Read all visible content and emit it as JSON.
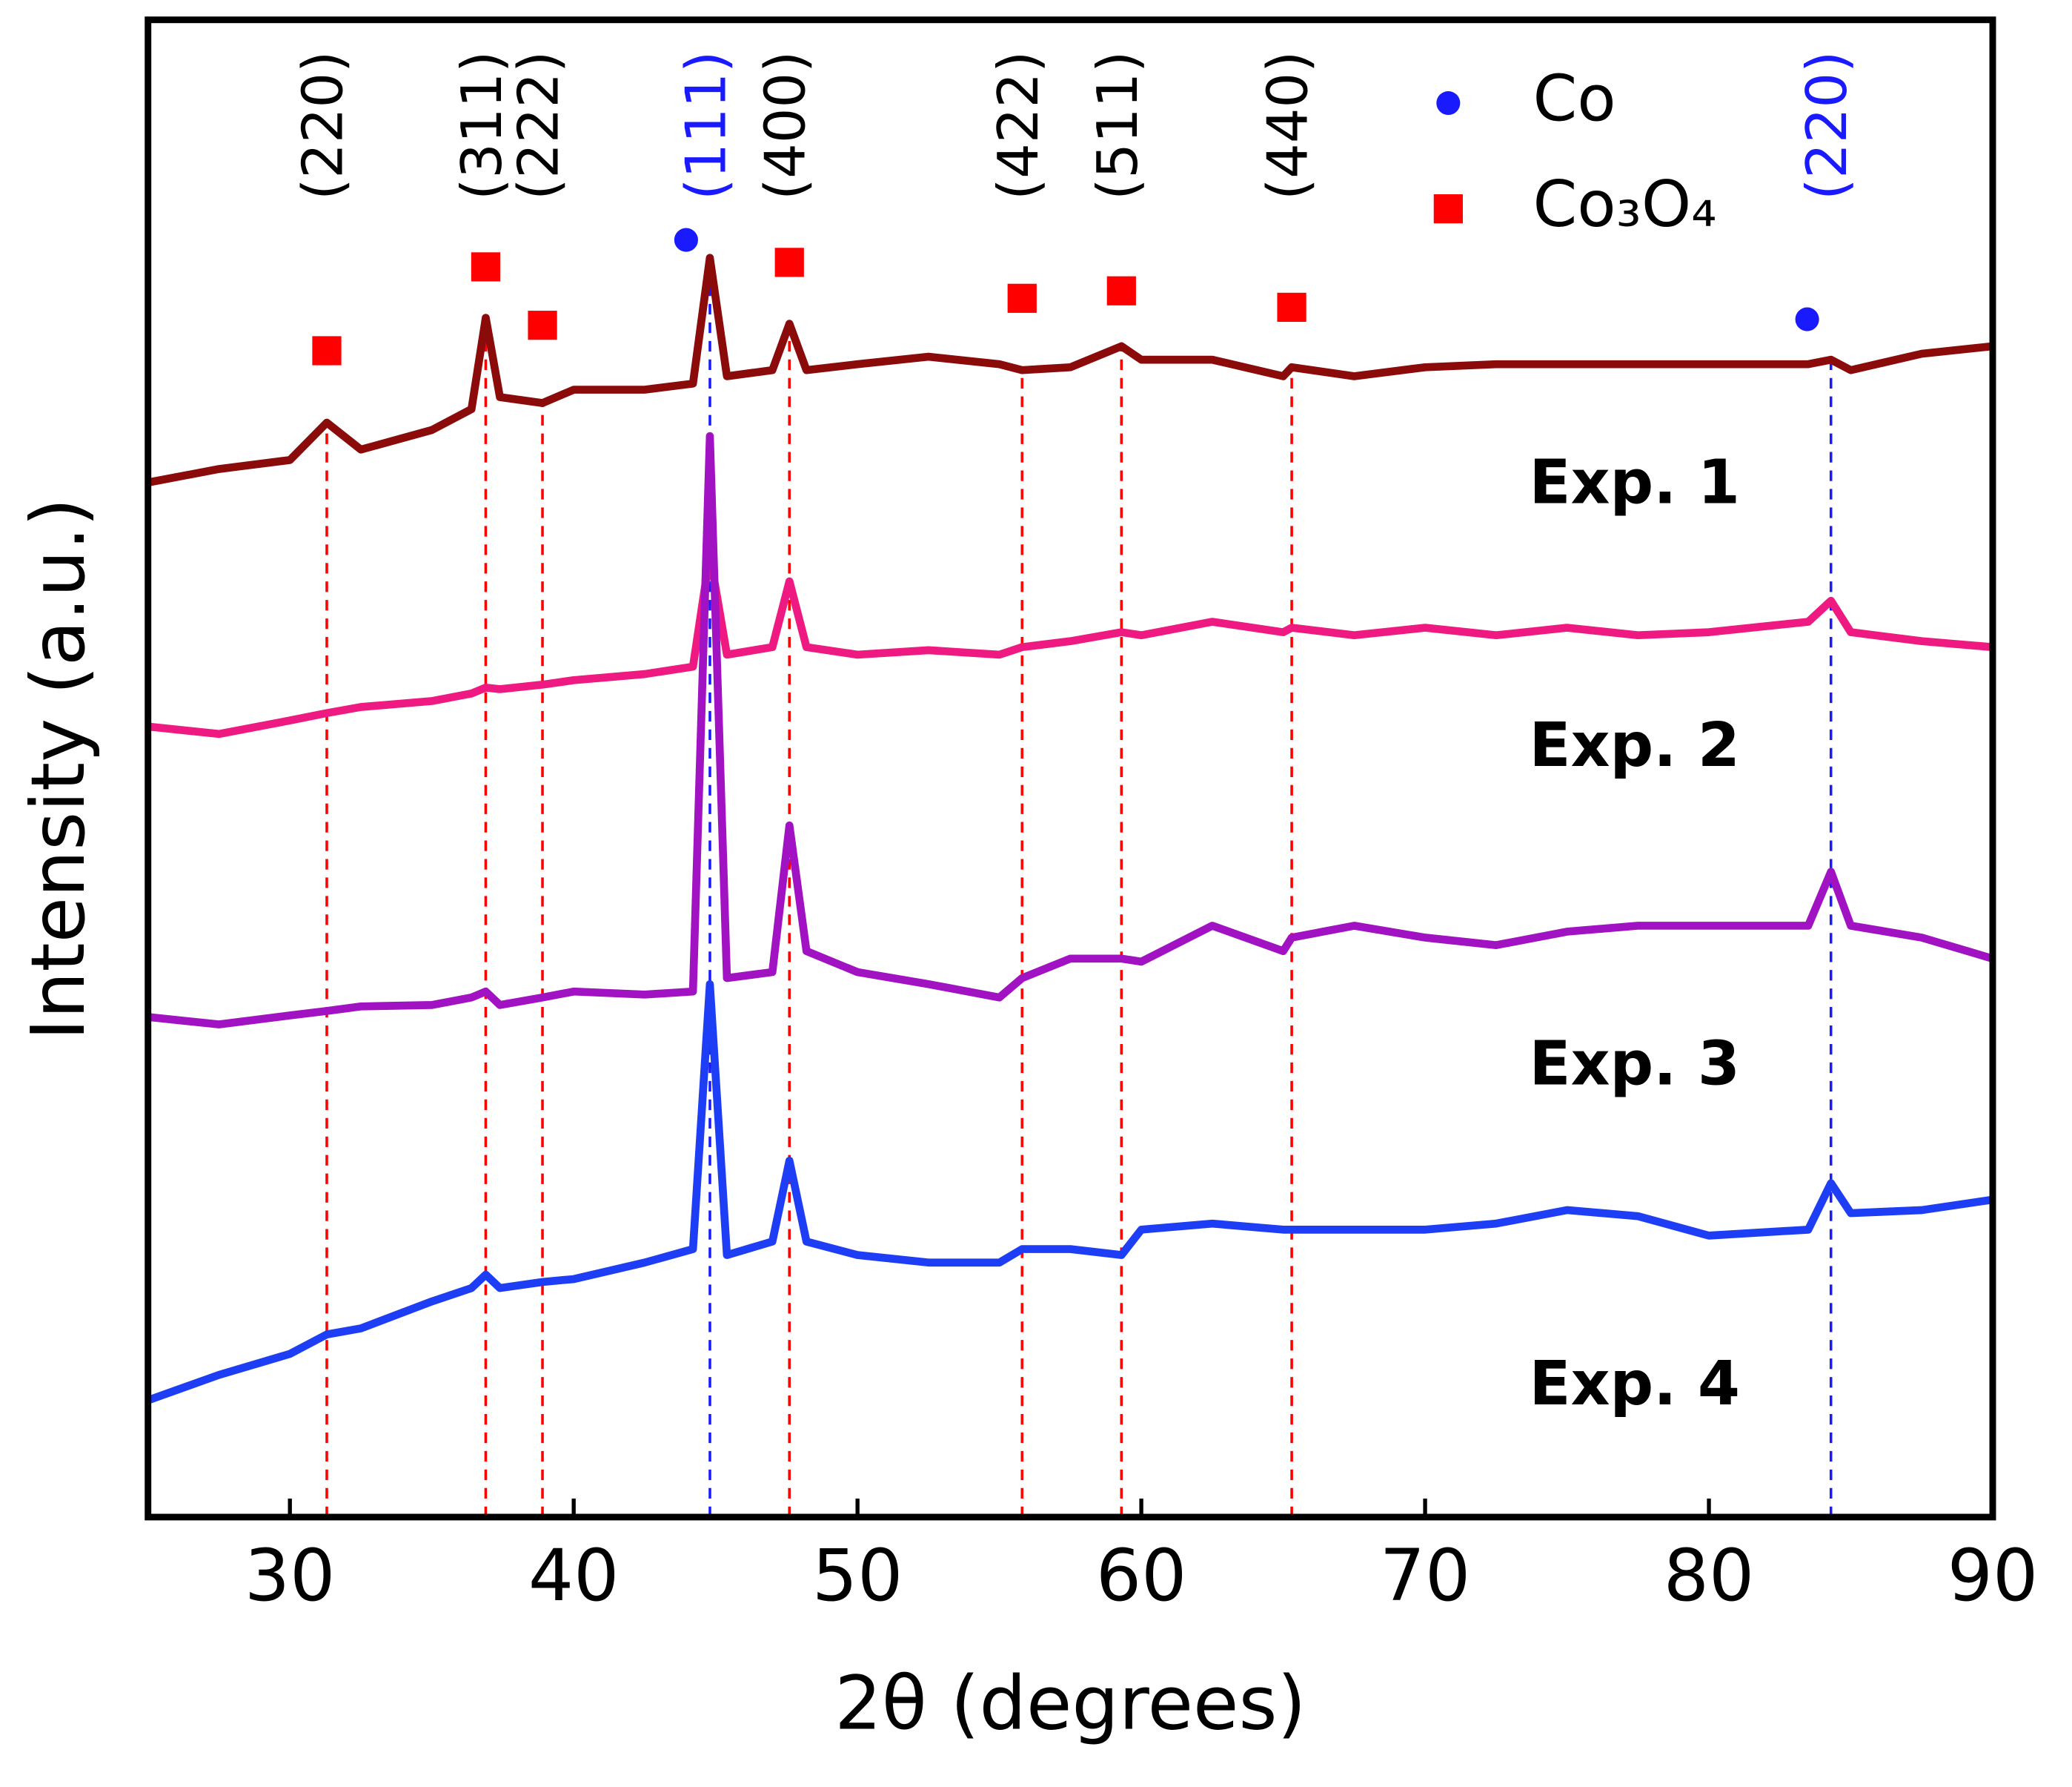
{
  "chart_data": {
    "type": "line",
    "xlabel": "2θ (degrees)",
    "ylabel": "Intensity (a.u.)",
    "xlim": [
      25,
      90
    ],
    "xticks": [
      30,
      40,
      50,
      60,
      70,
      80,
      90
    ],
    "ylim": [
      0,
      100
    ],
    "x": [
      25,
      27.5,
      30,
      31.3,
      32.5,
      35,
      36.4,
      36.9,
      37.4,
      38.9,
      40,
      42.5,
      44.2,
      44.8,
      45.4,
      47.0,
      47.6,
      48.2,
      50,
      52.5,
      55,
      55.8,
      57.5,
      59.3,
      60,
      62.5,
      65,
      65.3,
      67.5,
      70,
      72.5,
      75,
      77.5,
      80,
      83.5,
      84.3,
      85,
      87.5,
      90
    ],
    "series": [
      {
        "name": "Exp. 1",
        "color": "#8b0a0a",
        "values": [
          69.1,
          70,
          70.6,
          73.1,
          71.3,
          72.6,
          74,
          80.1,
          74.8,
          74.4,
          75.3,
          75.3,
          75.7,
          84.1,
          76.2,
          76.6,
          79.7,
          76.6,
          77,
          77.5,
          77,
          76.6,
          76.8,
          78.2,
          77.3,
          77.3,
          76.2,
          76.8,
          76.2,
          76.8,
          77,
          77,
          77,
          77,
          77,
          77.3,
          76.6,
          77.7,
          78.2
        ]
      },
      {
        "name": "Exp. 2",
        "color": "#ee1a82",
        "values": [
          52.8,
          52.3,
          53.2,
          53.7,
          54.1,
          54.5,
          55,
          55.4,
          55.3,
          55.6,
          55.9,
          56.3,
          56.8,
          64.3,
          57.6,
          58.1,
          62.5,
          58.1,
          57.6,
          57.9,
          57.6,
          58.1,
          58.5,
          59.1,
          58.9,
          59.8,
          59.1,
          59.4,
          58.9,
          59.4,
          58.9,
          59.4,
          58.9,
          59.1,
          59.8,
          61.2,
          59.1,
          58.5,
          58.1
        ]
      },
      {
        "name": "Exp. 3",
        "color": "#a112c2",
        "values": [
          33.4,
          32.9,
          33.5,
          33.8,
          34.1,
          34.2,
          34.7,
          35.1,
          34.2,
          34.7,
          35.1,
          34.9,
          35.1,
          72.2,
          36,
          36.4,
          46.2,
          37.8,
          36.4,
          35.6,
          34.7,
          36,
          37.3,
          37.3,
          37.1,
          39.5,
          37.8,
          38.7,
          39.5,
          38.7,
          38.2,
          39.1,
          39.5,
          39.5,
          39.5,
          43.1,
          39.5,
          38.7,
          37.3
        ]
      },
      {
        "name": "Exp. 4",
        "color": "#1e3ef5",
        "values": [
          7.8,
          9.5,
          10.9,
          12.2,
          12.6,
          14.4,
          15.3,
          16.2,
          15.3,
          15.7,
          15.9,
          17,
          17.9,
          35.6,
          17.5,
          18.4,
          23.8,
          18.4,
          17.5,
          17,
          17,
          17.9,
          17.9,
          17.5,
          19.2,
          19.6,
          19.2,
          19.2,
          19.2,
          19.2,
          19.6,
          20.5,
          20.1,
          18.8,
          19.2,
          22.3,
          20.3,
          20.5,
          21.2
        ]
      }
    ],
    "phases": [
      {
        "name": "Co",
        "color": "#1a1aff",
        "marker": "circle",
        "label_color": "#1a1aff"
      },
      {
        "name": "Co₃O₄",
        "color": "#ff0000",
        "marker": "square",
        "label_color": "#000000"
      }
    ],
    "reference_lines": [
      {
        "x": 31.3,
        "label": "(220)",
        "phase": 1,
        "marker_y": 77.9
      },
      {
        "x": 36.9,
        "label": "(311)",
        "phase": 1,
        "marker_y": 83.5
      },
      {
        "x": 38.9,
        "label": "(222)",
        "phase": 1,
        "marker_y": 79.6
      },
      {
        "x": 44.8,
        "label": "(111)",
        "phase": 0,
        "marker_y": 85.3
      },
      {
        "x": 47.6,
        "label": "(400)",
        "phase": 1,
        "marker_y": 83.8
      },
      {
        "x": 55.8,
        "label": "(422)",
        "phase": 1,
        "marker_y": 81.4
      },
      {
        "x": 59.3,
        "label": "(511)",
        "phase": 1,
        "marker_y": 81.9
      },
      {
        "x": 65.3,
        "label": "(440)",
        "phase": 1,
        "marker_y": 80.8
      },
      {
        "x": 84.3,
        "label": "(220)",
        "phase": 0,
        "marker_y": 80
      }
    ]
  }
}
